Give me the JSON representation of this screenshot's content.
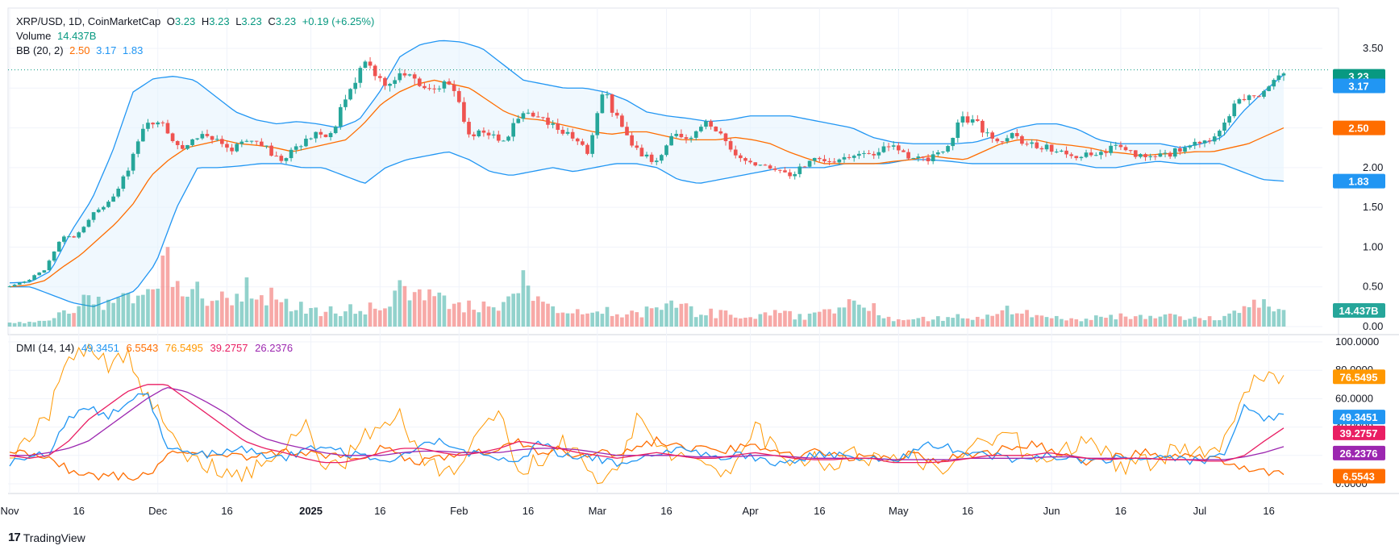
{
  "legend": {
    "symbol": "XRP/USD, 1D, CoinMarketCap",
    "o_label": "O",
    "o_value": "3.23",
    "h_label": "H",
    "h_value": "3.23",
    "l_label": "L",
    "l_value": "3.23",
    "c_label": "C",
    "c_value": "3.23",
    "change": "+0.19 (+6.25%)",
    "volume_label": "Volume",
    "volume_value": "14.437B",
    "bb_label": "BB (20, 2)",
    "bb_basis": "2.50",
    "bb_upper": "3.17",
    "bb_lower": "1.83"
  },
  "dmi_legend": {
    "label": "DMI (14, 14)",
    "plus_di": "49.3451",
    "minus_di": "6.5543",
    "dx": "76.5495",
    "adx": "39.2757",
    "adxr": "26.2376"
  },
  "tags": {
    "price": "3.23",
    "bb_upper": "3.17",
    "bb_basis": "2.50",
    "bb_lower": "1.83",
    "volume": "14.437B",
    "dx": "76.5495",
    "plus_di": "49.3451",
    "adx": "39.2757",
    "adxr": "26.2376",
    "minus_di": "6.5543"
  },
  "colors": {
    "up": "#26a69a",
    "down": "#ef5350",
    "bb_band": "#2196f3",
    "bb_basis": "#ff6d00",
    "bb_fill": "#e3f2fd",
    "plus_di": "#2196f3",
    "minus_di": "#ff6d00",
    "dx": "#ff9800",
    "adx": "#e91e63",
    "adxr": "#9c27b0",
    "last_price_line": "#089981"
  },
  "brand": {
    "name": "TradingView"
  },
  "chart_data": [
    {
      "type": "candlestick",
      "title": "XRP/USD, 1D, CoinMarketCap",
      "ylim": [
        0,
        3.85
      ],
      "y_ticks": [
        "3.50",
        "3.00",
        "2.50",
        "2.00",
        "1.50",
        "1.00",
        "0.50",
        "0.00"
      ],
      "x_ticks": [
        "Nov",
        "16",
        "Dec",
        "16",
        "2025",
        "16",
        "Feb",
        "16",
        "Mar",
        "16",
        "Apr",
        "16",
        "May",
        "16",
        "Jun",
        "16",
        "Jul",
        "16"
      ],
      "series_anchors": {
        "close": [
          0.5,
          0.58,
          0.7,
          1.12,
          1.15,
          1.44,
          1.62,
          1.98,
          2.6,
          2.52,
          2.25,
          2.4,
          2.35,
          2.2,
          2.38,
          2.28,
          2.06,
          2.3,
          2.4,
          2.45,
          3.0,
          3.3,
          3.05,
          3.2,
          3.08,
          3.02,
          3.1,
          2.4,
          2.45,
          2.3,
          2.68,
          2.62,
          2.52,
          2.4,
          2.2,
          2.95,
          2.5,
          2.2,
          2.05,
          2.4,
          2.35,
          2.55,
          2.4,
          2.1,
          2.05,
          2.0,
          1.85,
          2.1,
          2.1,
          2.08,
          2.18,
          2.2,
          2.28,
          2.1,
          2.1,
          2.2,
          2.6,
          2.55,
          2.3,
          2.4,
          2.28,
          2.25,
          2.2,
          2.15,
          2.18,
          2.25,
          2.2,
          2.1,
          2.15,
          2.25,
          2.3,
          2.4,
          2.75,
          2.9,
          2.95,
          3.23
        ],
        "bb_basis": [
          0.5,
          0.52,
          0.58,
          0.75,
          0.9,
          1.1,
          1.3,
          1.55,
          1.9,
          2.1,
          2.25,
          2.3,
          2.35,
          2.3,
          2.28,
          2.25,
          2.2,
          2.25,
          2.3,
          2.35,
          2.55,
          2.8,
          2.95,
          3.05,
          3.1,
          3.05,
          3.0,
          2.85,
          2.7,
          2.62,
          2.6,
          2.55,
          2.5,
          2.45,
          2.42,
          2.45,
          2.45,
          2.4,
          2.35,
          2.35,
          2.35,
          2.38,
          2.35,
          2.3,
          2.2,
          2.12,
          2.05,
          2.05,
          2.05,
          2.05,
          2.08,
          2.1,
          2.15,
          2.12,
          2.1,
          2.2,
          2.3,
          2.35,
          2.35,
          2.3,
          2.28,
          2.25,
          2.2,
          2.18,
          2.15,
          2.17,
          2.18,
          2.2,
          2.2,
          2.25,
          2.3,
          2.4,
          2.5
        ],
        "bb_upper": [
          0.55,
          0.56,
          0.7,
          1.2,
          1.6,
          2.2,
          2.95,
          3.12,
          3.15,
          3.1,
          2.9,
          2.7,
          2.6,
          2.55,
          2.58,
          2.55,
          2.5,
          2.6,
          2.95,
          3.4,
          3.55,
          3.6,
          3.58,
          3.5,
          3.3,
          3.1,
          3.05,
          3.0,
          3.0,
          2.95,
          2.85,
          2.7,
          2.65,
          2.62,
          2.58,
          2.6,
          2.65,
          2.65,
          2.65,
          2.6,
          2.55,
          2.5,
          2.38,
          2.32,
          2.3,
          2.3,
          2.3,
          2.32,
          2.4,
          2.5,
          2.55,
          2.55,
          2.48,
          2.35,
          2.3,
          2.3,
          2.3,
          2.25,
          2.3,
          2.38,
          2.7,
          2.95,
          3.17
        ],
        "bb_lower": [
          0.5,
          0.5,
          0.4,
          0.3,
          0.25,
          0.35,
          0.45,
          0.8,
          1.5,
          2.0,
          2.0,
          2.02,
          2.05,
          2.05,
          2.0,
          2.0,
          1.9,
          1.8,
          2.0,
          2.1,
          2.15,
          2.2,
          2.1,
          1.95,
          1.9,
          1.95,
          2.0,
          1.95,
          2.0,
          2.05,
          2.05,
          2.0,
          1.85,
          1.8,
          1.85,
          1.9,
          1.95,
          2.0,
          2.0,
          2.0,
          2.05,
          2.05,
          2.05,
          2.1,
          2.1,
          2.08,
          2.05,
          2.05,
          2.05,
          2.05,
          2.05,
          2.05,
          2.0,
          2.0,
          2.05,
          2.08,
          2.05,
          2.05,
          2.05,
          1.95,
          1.85,
          1.83
        ]
      }
    },
    {
      "type": "bar",
      "title": "Volume",
      "series": [
        {
          "name": "Volume",
          "last_value": "14.437B"
        }
      ],
      "note_values": "relative heights",
      "volume_anchors": [
        0.05,
        0.06,
        0.08,
        0.25,
        0.35,
        0.3,
        0.4,
        0.45,
        0.95,
        0.55,
        0.4,
        0.35,
        0.5,
        0.45,
        0.3,
        0.25,
        0.2,
        0.22,
        0.25,
        0.3,
        0.5,
        0.45,
        0.35,
        0.28,
        0.3,
        0.25,
        0.65,
        0.35,
        0.2,
        0.18,
        0.22,
        0.2,
        0.18,
        0.25,
        0.35,
        0.2,
        0.18,
        0.15,
        0.15,
        0.18,
        0.15,
        0.14,
        0.2,
        0.3,
        0.25,
        0.12,
        0.1,
        0.1,
        0.12,
        0.14,
        0.15,
        0.22,
        0.18,
        0.12,
        0.1,
        0.12,
        0.15,
        0.14,
        0.12,
        0.14,
        0.12,
        0.1,
        0.12,
        0.3,
        0.28,
        0.35
      ]
    },
    {
      "type": "line",
      "title": "DMI (14, 14)",
      "ylim": [
        -6,
        100
      ],
      "y_ticks": [
        "100.0000",
        "80.0000",
        "60.0000",
        "40.0000",
        "20.0000",
        "0.0000"
      ],
      "series": [
        {
          "name": "+DI",
          "last": 49.3451,
          "anchors": [
            15,
            17,
            22,
            45,
            55,
            48,
            58,
            65,
            25,
            22,
            20,
            22,
            25,
            20,
            18,
            24,
            26,
            22,
            20,
            15,
            22,
            28,
            30,
            24,
            20,
            18,
            15,
            30,
            20,
            20,
            18,
            15,
            18,
            20,
            25,
            22,
            18,
            20,
            18,
            15,
            17,
            20,
            20,
            18,
            20,
            15,
            22,
            28,
            25,
            22,
            20,
            18,
            15,
            20,
            18,
            15,
            17,
            18,
            17,
            20,
            15,
            17,
            20,
            55,
            45,
            49
          ]
        },
        {
          "name": "-DI",
          "last": 6.5543,
          "anchors": [
            25,
            22,
            18,
            10,
            5,
            6,
            5,
            5,
            20,
            22,
            22,
            20,
            18,
            20,
            22,
            22,
            18,
            20,
            18,
            25,
            20,
            15,
            18,
            20,
            22,
            25,
            30,
            22,
            25,
            20,
            22,
            20,
            25,
            30,
            28,
            25,
            22,
            25,
            28,
            22,
            20,
            22,
            20,
            18,
            20,
            18,
            22,
            15,
            18,
            20,
            22,
            25,
            28,
            25,
            20,
            15,
            18,
            20,
            22,
            20,
            20,
            18,
            15,
            10,
            8,
            6.5
          ]
        },
        {
          "name": "DX",
          "last": 76.5495,
          "anchors": [
            22,
            28,
            50,
            90,
            92,
            85,
            90,
            60,
            40,
            20,
            15,
            5,
            5,
            15,
            20,
            45,
            10,
            15,
            30,
            45,
            50,
            15,
            10,
            5,
            40,
            50,
            10,
            15,
            30,
            20,
            5,
            15,
            45,
            30,
            15,
            20,
            10,
            15,
            40,
            25,
            15,
            20,
            10,
            25,
            15,
            20,
            20,
            10,
            15,
            30,
            25,
            35,
            20,
            15,
            25,
            30,
            20,
            10,
            15,
            20,
            25,
            20,
            30,
            70,
            72,
            76.5
          ]
        },
        {
          "name": "ADX",
          "last": 39.2757,
          "anchors": [
            20,
            18,
            20,
            30,
            45,
            55,
            65,
            70,
            70,
            60,
            50,
            40,
            30,
            25,
            22,
            18,
            15,
            15,
            18,
            22,
            25,
            25,
            22,
            20,
            22,
            25,
            30,
            28,
            25,
            22,
            20,
            18,
            20,
            22,
            20,
            18,
            18,
            20,
            22,
            20,
            18,
            17,
            17,
            18,
            18,
            15,
            15,
            15,
            16,
            18,
            20,
            20,
            20,
            22,
            20,
            18,
            17,
            18,
            18,
            17,
            17,
            16,
            16,
            20,
            30,
            39.3
          ]
        },
        {
          "name": "ADXR",
          "last": 26.2376,
          "anchors": [
            20,
            20,
            22,
            25,
            30,
            40,
            50,
            60,
            68,
            65,
            58,
            50,
            40,
            32,
            28,
            25,
            22,
            20,
            20,
            20,
            22,
            23,
            23,
            22,
            22,
            22,
            24,
            25,
            25,
            24,
            22,
            20,
            20,
            20,
            20,
            19,
            19,
            19,
            20,
            20,
            19,
            18,
            18,
            18,
            18,
            17,
            17,
            17,
            17,
            18,
            18,
            18,
            18,
            19,
            19,
            18,
            18,
            18,
            18,
            17,
            17,
            17,
            17,
            19,
            22,
            26.2
          ]
        }
      ]
    }
  ]
}
